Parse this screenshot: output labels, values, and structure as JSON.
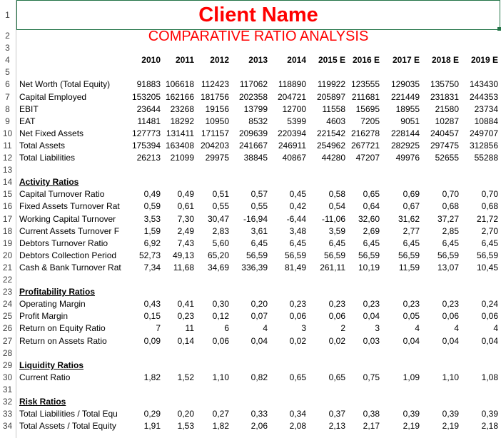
{
  "sheet": {
    "rows": [
      {
        "number": 1,
        "title": "Client Name"
      },
      {
        "number": 2,
        "subtitle": "COMPARATIVE RATIO ANALYSIS"
      },
      {
        "number": 3
      },
      {
        "number": 4,
        "years": [
          "2010",
          "2011",
          "2012",
          "2013",
          "2014",
          "2015 E",
          "2016 E",
          "2017 E",
          "2018 E",
          "2019 E"
        ]
      },
      {
        "number": 5
      },
      {
        "number": 6,
        "label": "Net Worth (Total Equity)",
        "values": [
          "91883",
          "106618",
          "112423",
          "117062",
          "118890",
          "119922",
          "123555",
          "129035",
          "135750",
          "143430"
        ]
      },
      {
        "number": 7,
        "label": "Capital Employed",
        "values": [
          "153205",
          "162166",
          "181756",
          "202358",
          "204721",
          "205897",
          "211681",
          "221449",
          "231831",
          "244353"
        ]
      },
      {
        "number": 8,
        "label": "EBIT",
        "values": [
          "23644",
          "23268",
          "19156",
          "13799",
          "12700",
          "11558",
          "15695",
          "18955",
          "21580",
          "23734"
        ]
      },
      {
        "number": 9,
        "label": "EAT",
        "values": [
          "11481",
          "18292",
          "10950",
          "8532",
          "5399",
          "4603",
          "7205",
          "9051",
          "10287",
          "10884"
        ]
      },
      {
        "number": 10,
        "label": "Net Fixed Assets",
        "values": [
          "127773",
          "131411",
          "171157",
          "209639",
          "220394",
          "221542",
          "216278",
          "228144",
          "240457",
          "249707"
        ]
      },
      {
        "number": 11,
        "label": "Total Assets",
        "values": [
          "175394",
          "163408",
          "204203",
          "241667",
          "246911",
          "254962",
          "267721",
          "282925",
          "297475",
          "312856"
        ]
      },
      {
        "number": 12,
        "label": "Total Liabilities",
        "values": [
          "26213",
          "21099",
          "29975",
          "38845",
          "40867",
          "44280",
          "47207",
          "49976",
          "52655",
          "55288"
        ]
      },
      {
        "number": 13
      },
      {
        "number": 14,
        "heading": "Activity Ratios"
      },
      {
        "number": 15,
        "label": "Capital Turnover Ratio",
        "values": [
          "0,49",
          "0,49",
          "0,51",
          "0,57",
          "0,45",
          "0,58",
          "0,65",
          "0,69",
          "0,70",
          "0,70"
        ]
      },
      {
        "number": 16,
        "label": "Fixed Assets Turnover Rat",
        "values": [
          "0,59",
          "0,61",
          "0,55",
          "0,55",
          "0,42",
          "0,54",
          "0,64",
          "0,67",
          "0,68",
          "0,68"
        ]
      },
      {
        "number": 17,
        "label": "Working Capital Turnover",
        "values": [
          "3,53",
          "7,30",
          "30,47",
          "-16,94",
          "-6,44",
          "-11,06",
          "32,60",
          "31,62",
          "37,27",
          "21,72"
        ]
      },
      {
        "number": 18,
        "label": "Current Assets Turnover F",
        "values": [
          "1,59",
          "2,49",
          "2,83",
          "3,61",
          "3,48",
          "3,59",
          "2,69",
          "2,77",
          "2,85",
          "2,70"
        ]
      },
      {
        "number": 19,
        "label": "Debtors Turnover Ratio",
        "values": [
          "6,92",
          "7,43",
          "5,60",
          "6,45",
          "6,45",
          "6,45",
          "6,45",
          "6,45",
          "6,45",
          "6,45"
        ]
      },
      {
        "number": 20,
        "label": "Debtors Collection Period",
        "values": [
          "52,73",
          "49,13",
          "65,20",
          "56,59",
          "56,59",
          "56,59",
          "56,59",
          "56,59",
          "56,59",
          "56,59"
        ]
      },
      {
        "number": 21,
        "label": "Cash & Bank Turnover Rat",
        "values": [
          "7,34",
          "11,68",
          "34,69",
          "336,39",
          "81,49",
          "261,11",
          "10,19",
          "11,59",
          "13,07",
          "10,45"
        ]
      },
      {
        "number": 22
      },
      {
        "number": 23,
        "heading": "Profitability Ratios"
      },
      {
        "number": 24,
        "label": "Operating Margin",
        "values": [
          "0,43",
          "0,41",
          "0,30",
          "0,20",
          "0,23",
          "0,23",
          "0,23",
          "0,23",
          "0,23",
          "0,24"
        ]
      },
      {
        "number": 25,
        "label": "Profit Margin",
        "values": [
          "0,15",
          "0,23",
          "0,12",
          "0,07",
          "0,06",
          "0,06",
          "0,04",
          "0,05",
          "0,06",
          "0,06"
        ]
      },
      {
        "number": 26,
        "label": "Return on Equity Ratio",
        "values": [
          "7",
          "11",
          "6",
          "4",
          "3",
          "2",
          "3",
          "4",
          "4",
          "4"
        ]
      },
      {
        "number": 27,
        "label": "Return on Assets Ratio",
        "values": [
          "0,09",
          "0,14",
          "0,06",
          "0,04",
          "0,02",
          "0,02",
          "0,03",
          "0,04",
          "0,04",
          "0,04"
        ]
      },
      {
        "number": 28
      },
      {
        "number": 29,
        "heading": "Liquidity Ratios"
      },
      {
        "number": 30,
        "label": "Current Ratio",
        "values": [
          "1,82",
          "1,52",
          "1,10",
          "0,82",
          "0,65",
          "0,65",
          "0,75",
          "1,09",
          "1,10",
          "1,08"
        ]
      },
      {
        "number": 31
      },
      {
        "number": 32,
        "heading": "Risk Ratios"
      },
      {
        "number": 33,
        "label": "Total Liabilities / Total Equ",
        "values": [
          "0,29",
          "0,20",
          "0,27",
          "0,33",
          "0,34",
          "0,37",
          "0,38",
          "0,39",
          "0,39",
          "0,39"
        ]
      },
      {
        "number": 34,
        "label": "Total Assets / Total Equity",
        "values": [
          "1,91",
          "1,53",
          "1,82",
          "2,06",
          "2,08",
          "2,13",
          "2,17",
          "2,19",
          "2,19",
          "2,18"
        ]
      }
    ]
  }
}
